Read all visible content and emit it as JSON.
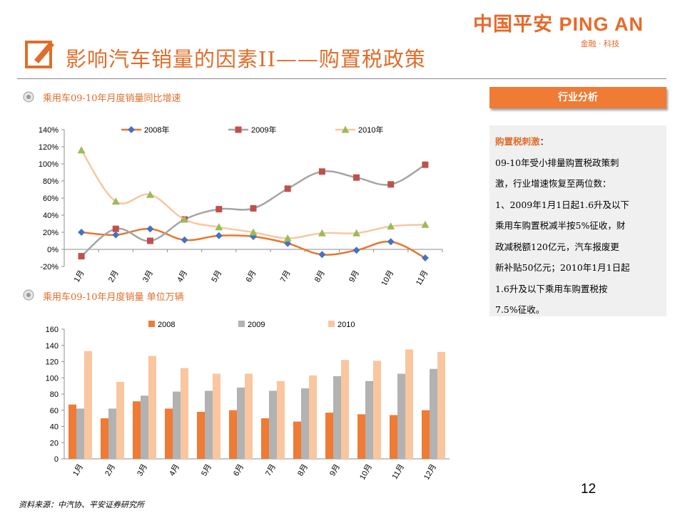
{
  "logo": {
    "brand": "中国平安 PING AN",
    "tagline": "金融 · 科技"
  },
  "title": "影响汽车销量的因素II——购置税政策",
  "section1": {
    "heading": "乘用车09-10年月度销量同比增速"
  },
  "section2": {
    "heading": "乘用车09-10年月度销量 单位万辆"
  },
  "panel": {
    "header": "行业分析",
    "title": "购置税刺激",
    "title_suffix": "：",
    "lines": [
      "09-10年受小排量购置税政策刺",
      "激，行业增速恢复至两位数：",
      "1、2009年1月1日起1.6升及以下",
      "乘用车购置税减半按5%征收，财",
      "政减税额120亿元，汽车报废更",
      "新补贴50亿元；2010年1月1日起",
      "1.6升及以下乘用车购置税按",
      "7.5%征收。"
    ]
  },
  "page_number": "12",
  "source": "资料来源：中汽协、平安证券研究所",
  "colors": {
    "accent": "#e06d2a",
    "s2008_line": "#e8762d",
    "s2009_line": "#a5a5a5",
    "s2010_line": "#f8c7a0",
    "m2008": "#4472c4",
    "m2009": "#c0504d",
    "m2010": "#9bbb59",
    "bar2008": "#ef7b34",
    "bar2009": "#b2b2b2",
    "bar2010": "#fac69f"
  },
  "chart_data": [
    {
      "type": "line",
      "categories": [
        "1月",
        "2月",
        "3月",
        "4月",
        "5月",
        "6月",
        "7月",
        "8月",
        "9月",
        "10月",
        "11月"
      ],
      "y_tick_labels": [
        "-20%",
        "0%",
        "20%",
        "40%",
        "60%",
        "80%",
        "100%",
        "120%",
        "140%"
      ],
      "ylim": [
        -20,
        140
      ],
      "y_unit": "%",
      "legend_position": "top",
      "series": [
        {
          "name": "2008年",
          "values": [
            20,
            17,
            24,
            11,
            16,
            15,
            7,
            -6,
            -1,
            9,
            -10
          ]
        },
        {
          "name": "2009年",
          "values": [
            -8,
            24,
            10,
            35,
            47,
            48,
            71,
            91,
            84,
            76,
            99
          ]
        },
        {
          "name": "2010年",
          "values": [
            116,
            56,
            64,
            35,
            26,
            20,
            13,
            19,
            19,
            27,
            29
          ]
        }
      ]
    },
    {
      "type": "bar",
      "categories": [
        "1月",
        "2月",
        "3月",
        "4月",
        "5月",
        "6月",
        "7月",
        "8月",
        "9月",
        "10月",
        "11月",
        "12月"
      ],
      "y_tick_labels": [
        "0",
        "20",
        "40",
        "60",
        "80",
        "100",
        "120",
        "140",
        "160"
      ],
      "ylim": [
        0,
        160
      ],
      "legend_position": "top",
      "series": [
        {
          "name": "2008",
          "values": [
            67,
            50,
            71,
            62,
            58,
            60,
            50,
            46,
            57,
            55,
            54,
            60
          ]
        },
        {
          "name": "2009",
          "values": [
            62,
            62,
            78,
            83,
            84,
            88,
            84,
            87,
            102,
            96,
            105,
            111
          ]
        },
        {
          "name": "2010",
          "values": [
            133,
            95,
            127,
            112,
            105,
            105,
            96,
            103,
            122,
            121,
            135,
            132
          ]
        }
      ]
    }
  ]
}
